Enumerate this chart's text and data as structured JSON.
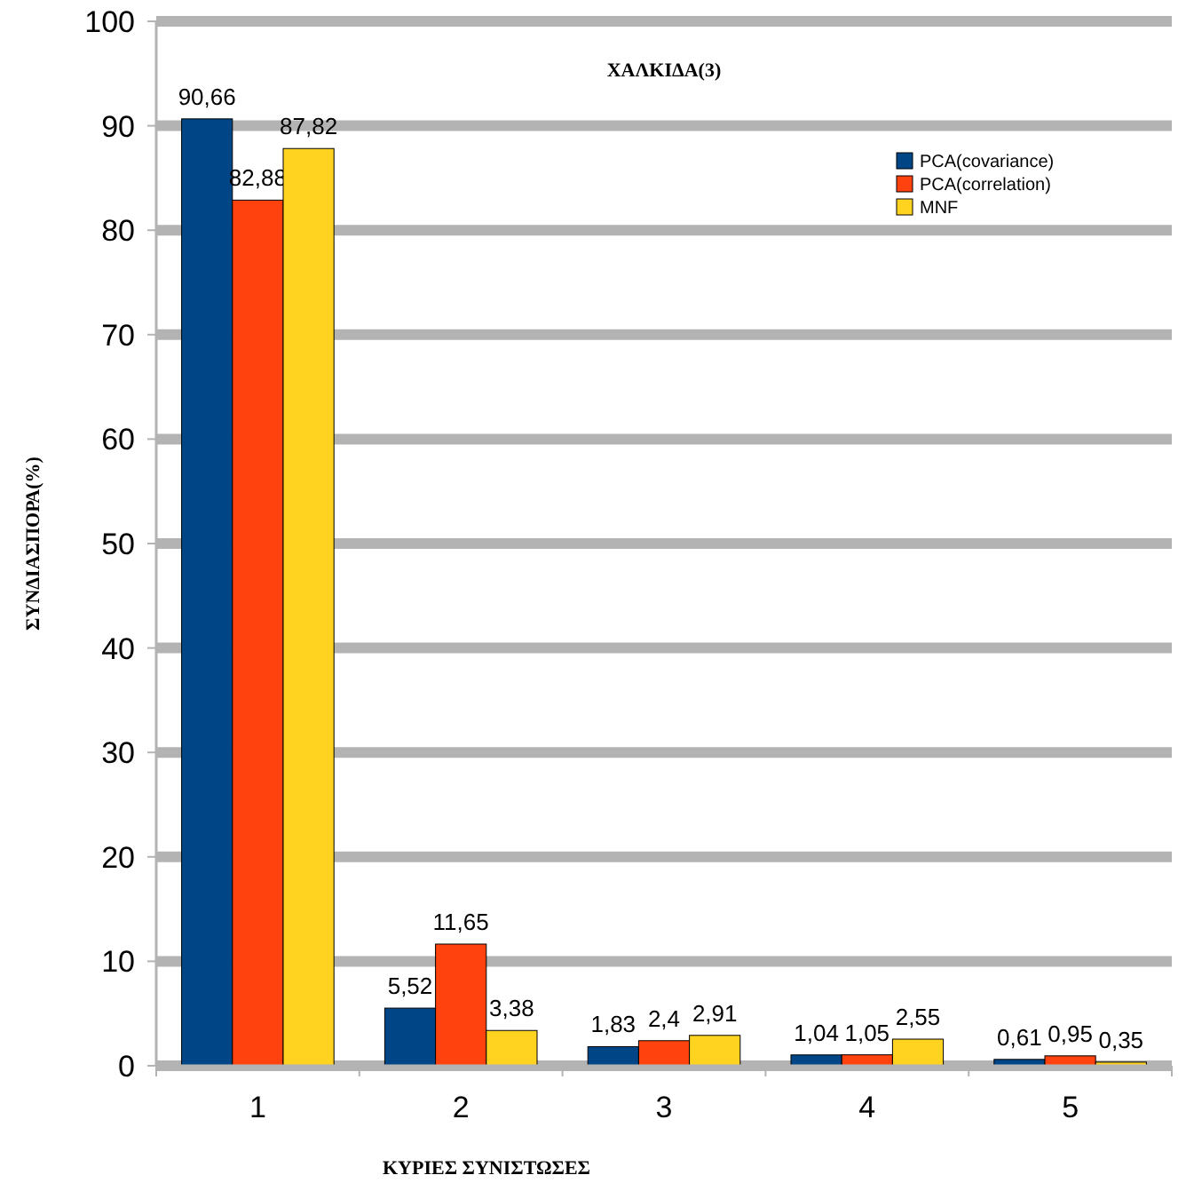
{
  "chart_data": {
    "type": "bar",
    "title": "ΧΑΛΚΙΔΑ(3)",
    "xlabel": "ΚΥΡΙΕΣ ΣΥΝΙΣΤΩΣΕΣ",
    "ylabel": "ΣΥΝΔΙΑΣΠΟΡΑ(%)",
    "categories": [
      "1",
      "2",
      "3",
      "4",
      "5"
    ],
    "series": [
      {
        "name": "PCA(covariance)",
        "color": "#004586",
        "values": [
          90.66,
          5.52,
          1.83,
          1.04,
          0.61
        ],
        "value_labels": [
          "90,66",
          "5,52",
          "1,83",
          "1,04",
          "0,61"
        ]
      },
      {
        "name": "PCA(correlation)",
        "color": "#ff420e",
        "values": [
          82.88,
          11.65,
          2.4,
          1.05,
          0.95
        ],
        "value_labels": [
          "82,88",
          "11,65",
          "2,4",
          "1,05",
          "0,95"
        ]
      },
      {
        "name": "MNF",
        "color": "#ffd320",
        "values": [
          87.82,
          3.38,
          2.91,
          2.55,
          0.35
        ],
        "value_labels": [
          "87,82",
          "3,38",
          "2,91",
          "2,55",
          "0,35"
        ]
      }
    ],
    "ylim": [
      0,
      100
    ],
    "yticks": [
      0,
      10,
      20,
      30,
      40,
      50,
      60,
      70,
      80,
      90,
      100
    ],
    "grid": "y",
    "legend": "top right"
  }
}
